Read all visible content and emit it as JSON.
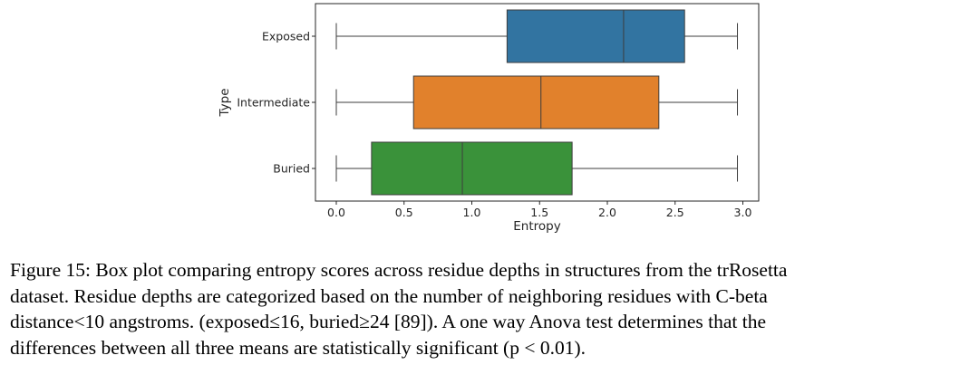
{
  "chart_data": {
    "type": "boxplot",
    "orientation": "horizontal",
    "title": "",
    "xlabel": "Entropy",
    "ylabel": "Type",
    "xlim": [
      -0.15,
      3.15
    ],
    "x_ticks": [
      0.0,
      0.5,
      1.0,
      1.5,
      2.0,
      2.5,
      3.0
    ],
    "x_tick_labels": [
      "0.0",
      "0.5",
      "1.0",
      "1.5",
      "2.0",
      "2.5",
      "3.0"
    ],
    "categories": [
      "Exposed",
      "Intermediate",
      "Buried"
    ],
    "boxes": [
      {
        "name": "Exposed",
        "color": "#3274a1",
        "whislo": 0.0,
        "q1": 1.26,
        "med": 2.12,
        "q3": 2.57,
        "whishi": 2.96
      },
      {
        "name": "Intermediate",
        "color": "#e1812c",
        "whislo": 0.0,
        "q1": 0.57,
        "med": 1.51,
        "q3": 2.38,
        "whishi": 2.96
      },
      {
        "name": "Buried",
        "color": "#3a923a",
        "whislo": 0.0,
        "q1": 0.26,
        "med": 0.93,
        "q3": 1.74,
        "whishi": 2.96
      }
    ],
    "grid": false,
    "legend": "none"
  },
  "caption": {
    "lines": [
      "Figure 15: Box plot comparing entropy scores across residue depths in structures from the trRosetta",
      "dataset. Residue depths are categorized based on the number of neighboring residues with C-beta",
      "distance<10 angstroms. (exposed≤16, buried≥24 [89]). A one way Anova test determines that the",
      "differences between all three means are statistically significant (p < 0.01)."
    ]
  }
}
